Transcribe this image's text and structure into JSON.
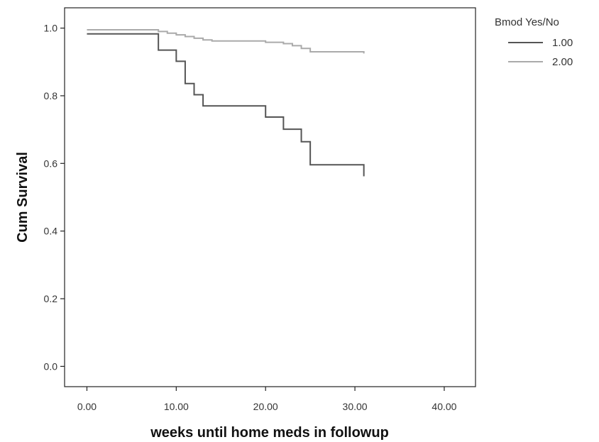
{
  "chart_data": {
    "type": "line",
    "step": true,
    "title": "",
    "xlabel": "weeks until home meds in followup",
    "ylabel": "Cum Survival",
    "xlim": [
      -2.5,
      43.5
    ],
    "ylim": [
      -0.06,
      1.06
    ],
    "xticks": [
      0,
      10,
      20,
      30,
      40
    ],
    "xtick_labels": [
      "0.00",
      "10.00",
      "20.00",
      "30.00",
      "40.00"
    ],
    "yticks": [
      0.0,
      0.2,
      0.4,
      0.6,
      0.8,
      1.0
    ],
    "ytick_labels": [
      "0.0",
      "0.2",
      "0.4",
      "0.6",
      "0.8",
      "1.0"
    ],
    "grid": false,
    "legend": {
      "title": "Bmod Yes/No",
      "placement": "outside-right-top"
    },
    "series": [
      {
        "name": "1.00",
        "color": "#555555",
        "x": [
          0,
          8,
          10,
          11,
          12,
          13,
          20,
          22,
          24,
          25,
          31
        ],
        "y": [
          0.983,
          0.935,
          0.902,
          0.836,
          0.803,
          0.77,
          0.737,
          0.701,
          0.664,
          0.596,
          0.562
        ]
      },
      {
        "name": "2.00",
        "color": "#aaaaaa",
        "x": [
          0,
          8,
          9,
          10,
          11,
          12,
          13,
          14,
          20,
          22,
          23,
          24,
          25,
          31
        ],
        "y": [
          0.995,
          0.99,
          0.985,
          0.98,
          0.975,
          0.97,
          0.965,
          0.962,
          0.958,
          0.954,
          0.948,
          0.94,
          0.93,
          0.925
        ]
      }
    ]
  }
}
